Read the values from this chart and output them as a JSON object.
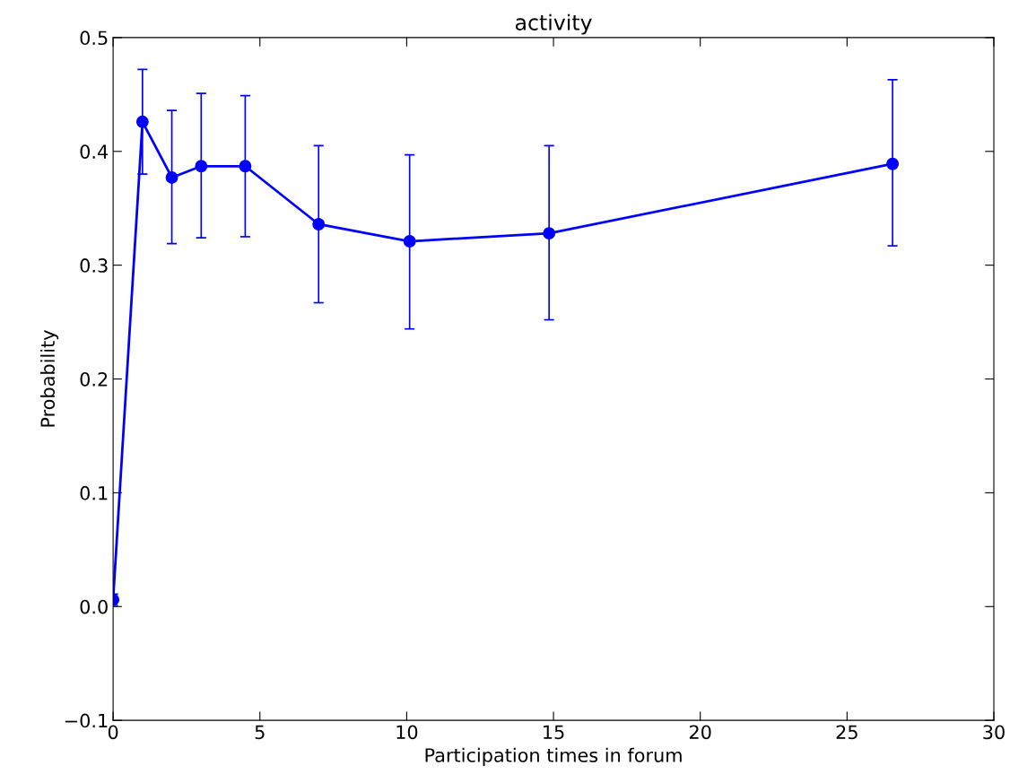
{
  "chart_data": {
    "type": "line",
    "title": "activity",
    "xlabel": "Participation times in forum",
    "ylabel": "Probability",
    "x": [
      0,
      1,
      2,
      3,
      4.5,
      7,
      10.1,
      14.85,
      26.55
    ],
    "series": [
      {
        "color": "#0000ff",
        "values": [
          0.006,
          0.426,
          0.377,
          0.387,
          0.387,
          0.336,
          0.321,
          0.328,
          0.389
        ],
        "errors": [
          [
            0.001,
            0.011
          ],
          [
            0.38,
            0.472
          ],
          [
            0.319,
            0.436
          ],
          [
            0.324,
            0.451
          ],
          [
            0.325,
            0.449
          ],
          [
            0.267,
            0.405
          ],
          [
            0.244,
            0.397
          ],
          [
            0.252,
            0.405
          ],
          [
            0.317,
            0.463
          ]
        ]
      }
    ],
    "xlim": [
      0,
      30
    ],
    "xticks": [
      0,
      5,
      10,
      15,
      20,
      25,
      30
    ],
    "ylim": [
      -0.1,
      0.5
    ],
    "yticks": [
      {
        "value": -0.1,
        "label": "−0.1"
      },
      {
        "value": 0.0,
        "label": "0.0"
      },
      {
        "value": 0.1,
        "label": "0.1"
      },
      {
        "value": 0.2,
        "label": "0.2"
      },
      {
        "value": 0.3,
        "label": "0.3"
      },
      {
        "value": 0.4,
        "label": "0.4"
      },
      {
        "value": 0.5,
        "label": "0.5"
      }
    ],
    "marker": "circle",
    "line_style": "solid",
    "grid": false,
    "legend": false
  }
}
